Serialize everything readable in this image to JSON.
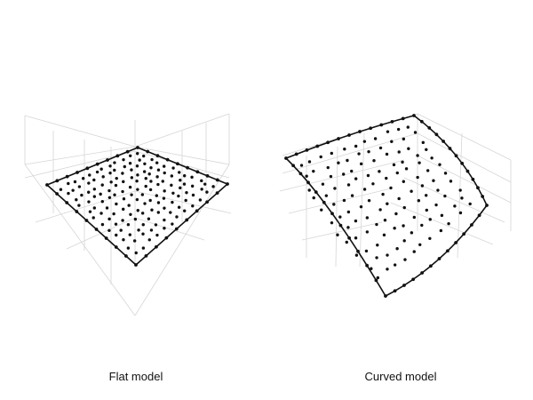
{
  "panels": [
    {
      "id": "flat",
      "caption": "Flat model"
    },
    {
      "id": "curved",
      "caption": "Curved model"
    }
  ],
  "colors": {
    "grid": "#d6d6d6",
    "edge": "#111111",
    "point": "#111111",
    "caption": "#111111"
  }
}
